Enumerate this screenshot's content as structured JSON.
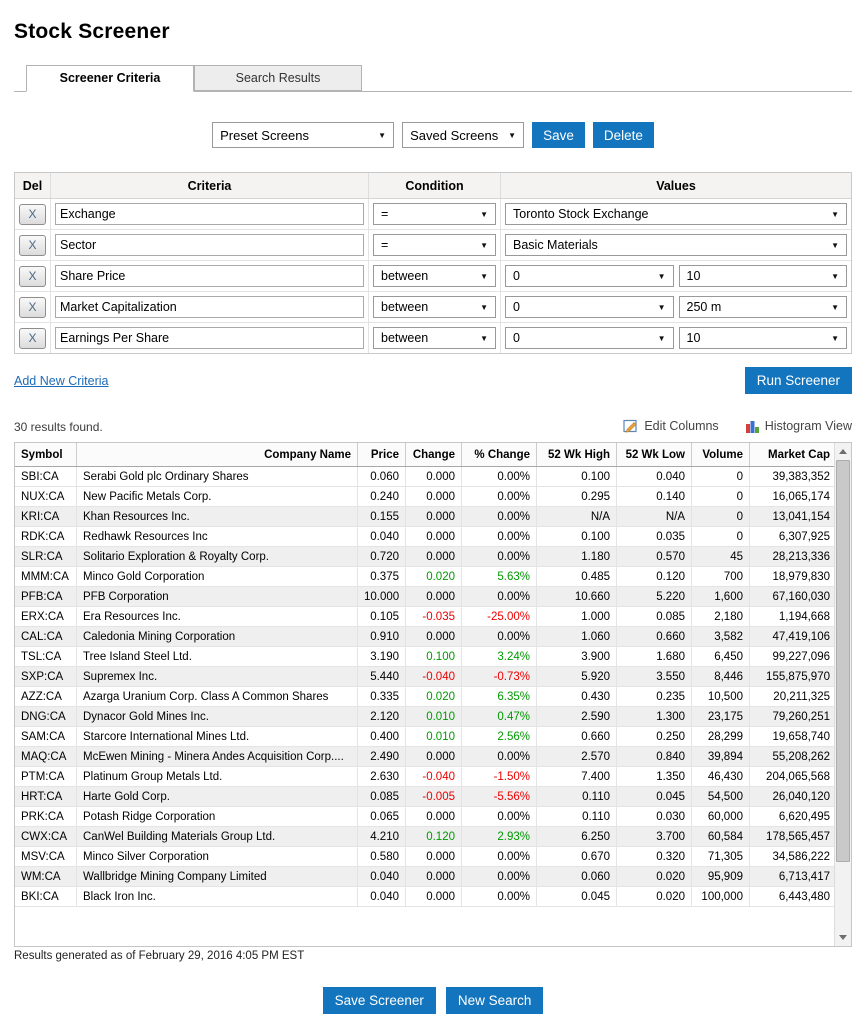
{
  "colors": {
    "accent_blue": "#1375bd",
    "positive_green": "#009900",
    "negative_red": "#ee0000",
    "link_blue": "#1d6bb8"
  },
  "page": {
    "title": "Stock Screener"
  },
  "tabs": {
    "screener_criteria": "Screener Criteria",
    "search_results": "Search Results"
  },
  "toolbar": {
    "preset_screens": "Preset Screens",
    "saved_screens": "Saved Screens",
    "save": "Save",
    "delete": "Delete"
  },
  "criteria": {
    "headers": {
      "del": "Del",
      "criteria": "Criteria",
      "condition": "Condition",
      "values": "Values"
    },
    "delete_button": "X",
    "rows": [
      {
        "criteria": "Exchange",
        "condition": "=",
        "values": [
          "Toronto Stock Exchange"
        ]
      },
      {
        "criteria": "Sector",
        "condition": "=",
        "values": [
          "Basic Materials"
        ]
      },
      {
        "criteria": "Share Price",
        "condition": "between",
        "values": [
          "0",
          "10"
        ]
      },
      {
        "criteria": "Market Capitalization",
        "condition": "between",
        "values": [
          "0",
          "250 m"
        ]
      },
      {
        "criteria": "Earnings Per Share",
        "condition": "between",
        "values": [
          "0",
          "10"
        ]
      }
    ],
    "add_new": "Add New Criteria",
    "run_screener": "Run Screener"
  },
  "results": {
    "count_text": "30 results found.",
    "edit_columns": "Edit Columns",
    "histogram_view": "Histogram View",
    "generated_text": "Results generated as of February 29, 2016 4:05 PM EST",
    "headers": [
      "Symbol",
      "Company Name",
      "Price",
      "Change",
      "% Change",
      "52 Wk High",
      "52 Wk Low",
      "Volume",
      "Market Cap"
    ],
    "rows": [
      {
        "symbol": "SBI:CA",
        "company": "Serabi Gold plc Ordinary Shares",
        "price": "0.060",
        "change": "0.000",
        "pct_change": "0.00%",
        "wk52_high": "0.100",
        "wk52_low": "0.040",
        "volume": "0",
        "market_cap": "39,383,352"
      },
      {
        "symbol": "NUX:CA",
        "company": "New Pacific Metals Corp.",
        "price": "0.240",
        "change": "0.000",
        "pct_change": "0.00%",
        "wk52_high": "0.295",
        "wk52_low": "0.140",
        "volume": "0",
        "market_cap": "16,065,174"
      },
      {
        "symbol": "KRI:CA",
        "company": "Khan Resources Inc.",
        "price": "0.155",
        "change": "0.000",
        "pct_change": "0.00%",
        "wk52_high": "N/A",
        "wk52_low": "N/A",
        "volume": "0",
        "market_cap": "13,041,154"
      },
      {
        "symbol": "RDK:CA",
        "company": "Redhawk Resources Inc",
        "price": "0.040",
        "change": "0.000",
        "pct_change": "0.00%",
        "wk52_high": "0.100",
        "wk52_low": "0.035",
        "volume": "0",
        "market_cap": "6,307,925"
      },
      {
        "symbol": "SLR:CA",
        "company": "Solitario Exploration & Royalty Corp.",
        "price": "0.720",
        "change": "0.000",
        "pct_change": "0.00%",
        "wk52_high": "1.180",
        "wk52_low": "0.570",
        "volume": "45",
        "market_cap": "28,213,336"
      },
      {
        "symbol": "MMM:CA",
        "company": "Minco Gold Corporation",
        "price": "0.375",
        "change": "0.020",
        "pct_change": "5.63%",
        "wk52_high": "0.485",
        "wk52_low": "0.120",
        "volume": "700",
        "market_cap": "18,979,830"
      },
      {
        "symbol": "PFB:CA",
        "company": "PFB Corporation",
        "price": "10.000",
        "change": "0.000",
        "pct_change": "0.00%",
        "wk52_high": "10.660",
        "wk52_low": "5.220",
        "volume": "1,600",
        "market_cap": "67,160,030"
      },
      {
        "symbol": "ERX:CA",
        "company": "Era Resources Inc.",
        "price": "0.105",
        "change": "-0.035",
        "pct_change": "-25.00%",
        "wk52_high": "1.000",
        "wk52_low": "0.085",
        "volume": "2,180",
        "market_cap": "1,194,668"
      },
      {
        "symbol": "CAL:CA",
        "company": "Caledonia Mining Corporation",
        "price": "0.910",
        "change": "0.000",
        "pct_change": "0.00%",
        "wk52_high": "1.060",
        "wk52_low": "0.660",
        "volume": "3,582",
        "market_cap": "47,419,106"
      },
      {
        "symbol": "TSL:CA",
        "company": "Tree Island Steel Ltd.",
        "price": "3.190",
        "change": "0.100",
        "pct_change": "3.24%",
        "wk52_high": "3.900",
        "wk52_low": "1.680",
        "volume": "6,450",
        "market_cap": "99,227,096"
      },
      {
        "symbol": "SXP:CA",
        "company": "Supremex Inc.",
        "price": "5.440",
        "change": "-0.040",
        "pct_change": "-0.73%",
        "wk52_high": "5.920",
        "wk52_low": "3.550",
        "volume": "8,446",
        "market_cap": "155,875,970"
      },
      {
        "symbol": "AZZ:CA",
        "company": "Azarga Uranium Corp. Class A Common Shares",
        "price": "0.335",
        "change": "0.020",
        "pct_change": "6.35%",
        "wk52_high": "0.430",
        "wk52_low": "0.235",
        "volume": "10,500",
        "market_cap": "20,211,325"
      },
      {
        "symbol": "DNG:CA",
        "company": "Dynacor Gold Mines Inc.",
        "price": "2.120",
        "change": "0.010",
        "pct_change": "0.47%",
        "wk52_high": "2.590",
        "wk52_low": "1.300",
        "volume": "23,175",
        "market_cap": "79,260,251"
      },
      {
        "symbol": "SAM:CA",
        "company": "Starcore International Mines Ltd.",
        "price": "0.400",
        "change": "0.010",
        "pct_change": "2.56%",
        "wk52_high": "0.660",
        "wk52_low": "0.250",
        "volume": "28,299",
        "market_cap": "19,658,740"
      },
      {
        "symbol": "MAQ:CA",
        "company": "McEwen Mining - Minera Andes Acquisition Corp....",
        "price": "2.490",
        "change": "0.000",
        "pct_change": "0.00%",
        "wk52_high": "2.570",
        "wk52_low": "0.840",
        "volume": "39,894",
        "market_cap": "55,208,262"
      },
      {
        "symbol": "PTM:CA",
        "company": "Platinum Group Metals Ltd.",
        "price": "2.630",
        "change": "-0.040",
        "pct_change": "-1.50%",
        "wk52_high": "7.400",
        "wk52_low": "1.350",
        "volume": "46,430",
        "market_cap": "204,065,568"
      },
      {
        "symbol": "HRT:CA",
        "company": "Harte Gold Corp.",
        "price": "0.085",
        "change": "-0.005",
        "pct_change": "-5.56%",
        "wk52_high": "0.110",
        "wk52_low": "0.045",
        "volume": "54,500",
        "market_cap": "26,040,120"
      },
      {
        "symbol": "PRK:CA",
        "company": "Potash Ridge Corporation",
        "price": "0.065",
        "change": "0.000",
        "pct_change": "0.00%",
        "wk52_high": "0.110",
        "wk52_low": "0.030",
        "volume": "60,000",
        "market_cap": "6,620,495"
      },
      {
        "symbol": "CWX:CA",
        "company": "CanWel Building Materials Group Ltd.",
        "price": "4.210",
        "change": "0.120",
        "pct_change": "2.93%",
        "wk52_high": "6.250",
        "wk52_low": "3.700",
        "volume": "60,584",
        "market_cap": "178,565,457"
      },
      {
        "symbol": "MSV:CA",
        "company": "Minco Silver Corporation",
        "price": "0.580",
        "change": "0.000",
        "pct_change": "0.00%",
        "wk52_high": "0.670",
        "wk52_low": "0.320",
        "volume": "71,305",
        "market_cap": "34,586,222"
      },
      {
        "symbol": "WM:CA",
        "company": "Wallbridge Mining Company Limited",
        "price": "0.040",
        "change": "0.000",
        "pct_change": "0.00%",
        "wk52_high": "0.060",
        "wk52_low": "0.020",
        "volume": "95,909",
        "market_cap": "6,713,417"
      },
      {
        "symbol": "BKI:CA",
        "company": "Black Iron Inc.",
        "price": "0.040",
        "change": "0.000",
        "pct_change": "0.00%",
        "wk52_high": "0.045",
        "wk52_low": "0.020",
        "volume": "100,000",
        "market_cap": "6,443,480"
      }
    ]
  },
  "footer": {
    "save_screener": "Save Screener",
    "new_search": "New Search"
  }
}
